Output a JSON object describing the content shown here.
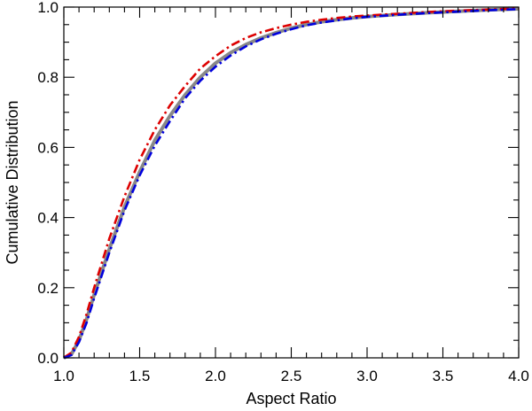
{
  "chart_data": {
    "type": "line",
    "title": "",
    "xlabel": "Aspect Ratio",
    "ylabel": "Cumulative Distribution",
    "xlim": [
      1.0,
      4.0
    ],
    "ylim": [
      0.0,
      1.0
    ],
    "xticks": [
      1.0,
      1.5,
      2.0,
      2.5,
      3.0,
      3.5,
      4.0
    ],
    "xtick_labels": [
      "1.0",
      "1.5",
      "2.0",
      "2.5",
      "3.0",
      "3.5",
      "4.0"
    ],
    "yticks": [
      0.0,
      0.2,
      0.4,
      0.6,
      0.8,
      1.0
    ],
    "ytick_labels": [
      "0.0",
      "0.2",
      "0.4",
      "0.6",
      "0.8",
      "1.0"
    ],
    "grid": false,
    "legend": "none",
    "series": [
      {
        "color": "#888888",
        "style": "solid",
        "x": [
          1.0,
          1.05,
          1.1,
          1.15,
          1.2,
          1.3,
          1.4,
          1.5,
          1.6,
          1.7,
          1.8,
          1.9,
          2.0,
          2.1,
          2.2,
          2.3,
          2.4,
          2.5,
          2.6,
          2.7,
          2.8,
          2.9,
          3.0,
          3.2,
          3.4,
          3.6,
          3.8,
          4.0
        ],
        "y": [
          0.0,
          0.01,
          0.05,
          0.11,
          0.18,
          0.31,
          0.43,
          0.53,
          0.62,
          0.69,
          0.75,
          0.8,
          0.84,
          0.87,
          0.893,
          0.912,
          0.927,
          0.94,
          0.95,
          0.958,
          0.964,
          0.969,
          0.973,
          0.979,
          0.984,
          0.988,
          0.992,
          0.995
        ]
      },
      {
        "color": "#dd0000",
        "style": "dashdot",
        "x": [
          1.0,
          1.05,
          1.1,
          1.15,
          1.2,
          1.3,
          1.4,
          1.5,
          1.6,
          1.7,
          1.8,
          1.9,
          2.0,
          2.1,
          2.2,
          2.3,
          2.4,
          2.5,
          2.6,
          2.7,
          2.8,
          2.9,
          3.0,
          3.2,
          3.4,
          3.6,
          3.8,
          4.0
        ],
        "y": [
          0.0,
          0.015,
          0.06,
          0.125,
          0.2,
          0.34,
          0.46,
          0.565,
          0.65,
          0.72,
          0.775,
          0.825,
          0.86,
          0.89,
          0.912,
          0.928,
          0.94,
          0.95,
          0.958,
          0.964,
          0.969,
          0.973,
          0.976,
          0.981,
          0.986,
          0.99,
          0.993,
          0.996
        ]
      },
      {
        "color": "#0000dd",
        "style": "dashdot",
        "x": [
          1.0,
          1.05,
          1.1,
          1.15,
          1.2,
          1.3,
          1.4,
          1.5,
          1.6,
          1.7,
          1.8,
          1.9,
          2.0,
          2.1,
          2.2,
          2.3,
          2.4,
          2.5,
          2.6,
          2.7,
          2.8,
          2.9,
          3.0,
          3.2,
          3.4,
          3.6,
          3.8,
          4.0
        ],
        "y": [
          0.0,
          0.008,
          0.045,
          0.1,
          0.17,
          0.3,
          0.42,
          0.52,
          0.605,
          0.675,
          0.74,
          0.79,
          0.83,
          0.862,
          0.888,
          0.908,
          0.924,
          0.937,
          0.948,
          0.956,
          0.962,
          0.968,
          0.972,
          0.978,
          0.983,
          0.987,
          0.991,
          0.994
        ]
      }
    ]
  }
}
